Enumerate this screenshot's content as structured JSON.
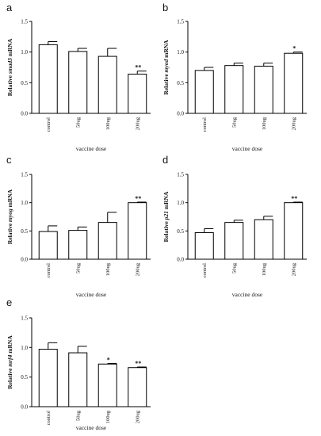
{
  "figure": {
    "panels": [
      {
        "letter": "a",
        "chart_data": {
          "type": "bar",
          "categories": [
            "control",
            "50ug",
            "100ug",
            "200ug"
          ],
          "values": [
            1.12,
            1.01,
            0.93,
            0.64
          ],
          "errors": [
            0.05,
            0.05,
            0.13,
            0.05
          ],
          "significance": [
            "",
            "",
            "",
            "**"
          ],
          "ylabel_prefix": "Relative ",
          "ylabel_gene": "smad3",
          "ylabel_suffix": " mRNA",
          "xlabel": "vaccine dose",
          "ylim": [
            0,
            1.5
          ],
          "yticks": [
            0.0,
            0.5,
            1.0,
            1.5
          ],
          "ytick_labels": [
            "0.0",
            "0.5",
            "1.0",
            "1.5"
          ],
          "grid": false,
          "bar_fill": "#ffffff",
          "bar_stroke": "#000000"
        }
      },
      {
        "letter": "b",
        "chart_data": {
          "type": "bar",
          "categories": [
            "control",
            "50ug",
            "100ug",
            "200ug"
          ],
          "values": [
            0.7,
            0.78,
            0.77,
            0.98
          ],
          "errors": [
            0.05,
            0.04,
            0.05,
            0.02
          ],
          "significance": [
            "",
            "",
            "",
            "*"
          ],
          "ylabel_prefix": "Relative ",
          "ylabel_gene": "myod",
          "ylabel_suffix": " mRNA",
          "xlabel": "vaccine dose",
          "ylim": [
            0,
            1.5
          ],
          "yticks": [
            0.0,
            0.5,
            1.0,
            1.5
          ],
          "ytick_labels": [
            "0.0",
            "0.5",
            "1.0",
            "1.5"
          ],
          "grid": false,
          "bar_fill": "#ffffff",
          "bar_stroke": "#000000"
        }
      },
      {
        "letter": "c",
        "chart_data": {
          "type": "bar",
          "categories": [
            "control",
            "50ug",
            "100ug",
            "200ug"
          ],
          "values": [
            0.49,
            0.51,
            0.65,
            1.0
          ],
          "errors": [
            0.1,
            0.06,
            0.18,
            0.01
          ],
          "significance": [
            "",
            "",
            "",
            "**"
          ],
          "ylabel_prefix": "Relative ",
          "ylabel_gene": "myog",
          "ylabel_suffix": " mRNA",
          "xlabel": "vaccine dose",
          "ylim": [
            0,
            1.5
          ],
          "yticks": [
            0.0,
            0.5,
            1.0,
            1.5
          ],
          "ytick_labels": [
            "0.0",
            "0.5",
            "1.0",
            "1.5"
          ],
          "grid": false,
          "bar_fill": "#ffffff",
          "bar_stroke": "#000000"
        }
      },
      {
        "letter": "d",
        "chart_data": {
          "type": "bar",
          "categories": [
            "control",
            "50ug",
            "100ug",
            "200ug"
          ],
          "values": [
            0.47,
            0.65,
            0.7,
            1.0
          ],
          "errors": [
            0.07,
            0.04,
            0.06,
            0.01
          ],
          "significance": [
            "",
            "",
            "",
            "**"
          ],
          "ylabel_prefix": "Relative ",
          "ylabel_gene": "p21",
          "ylabel_suffix": " mRNA",
          "xlabel": "vaccine dose",
          "ylim": [
            0,
            1.5
          ],
          "yticks": [
            0.0,
            0.5,
            1.0,
            1.5
          ],
          "ytick_labels": [
            "0.0",
            "0.5",
            "1.0",
            "1.5"
          ],
          "grid": false,
          "bar_fill": "#ffffff",
          "bar_stroke": "#000000"
        }
      },
      {
        "letter": "e",
        "chart_data": {
          "type": "bar",
          "categories": [
            "control",
            "50ug",
            "100ug",
            "200ug"
          ],
          "values": [
            0.97,
            0.91,
            0.72,
            0.66
          ],
          "errors": [
            0.11,
            0.11,
            0.01,
            0.01
          ],
          "significance": [
            "",
            "",
            "*",
            "**"
          ],
          "ylabel_prefix": "Relative ",
          "ylabel_gene": "mrf4",
          "ylabel_suffix": " mRNA",
          "xlabel": "vaccine dose",
          "ylim": [
            0,
            1.5
          ],
          "yticks": [
            0.0,
            0.5,
            1.0,
            1.5
          ],
          "ytick_labels": [
            "0.0",
            "0.5",
            "1.0",
            "1.5"
          ],
          "grid": false,
          "bar_fill": "#ffffff",
          "bar_stroke": "#000000"
        }
      }
    ]
  }
}
